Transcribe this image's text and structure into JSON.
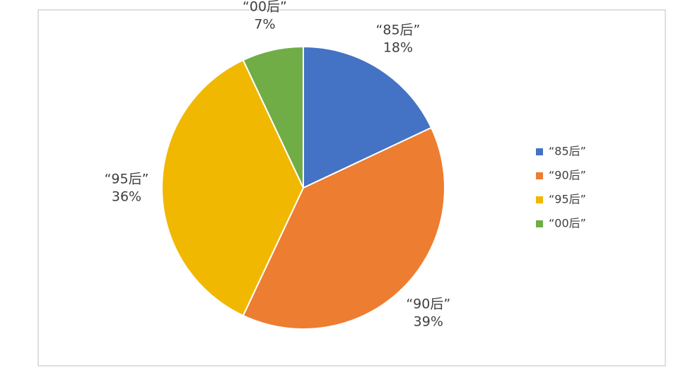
{
  "chart_data": {
    "type": "pie",
    "categories": [
      "“85后”",
      "“90后”",
      "“95后”",
      "“00后”"
    ],
    "values": [
      18,
      39,
      36,
      7
    ],
    "value_labels": [
      "18%",
      "39%",
      "36%",
      "7%"
    ],
    "colors": [
      "#4472c4",
      "#ed7d31",
      "#f0b800",
      "#70ad47"
    ],
    "legend": "right"
  }
}
